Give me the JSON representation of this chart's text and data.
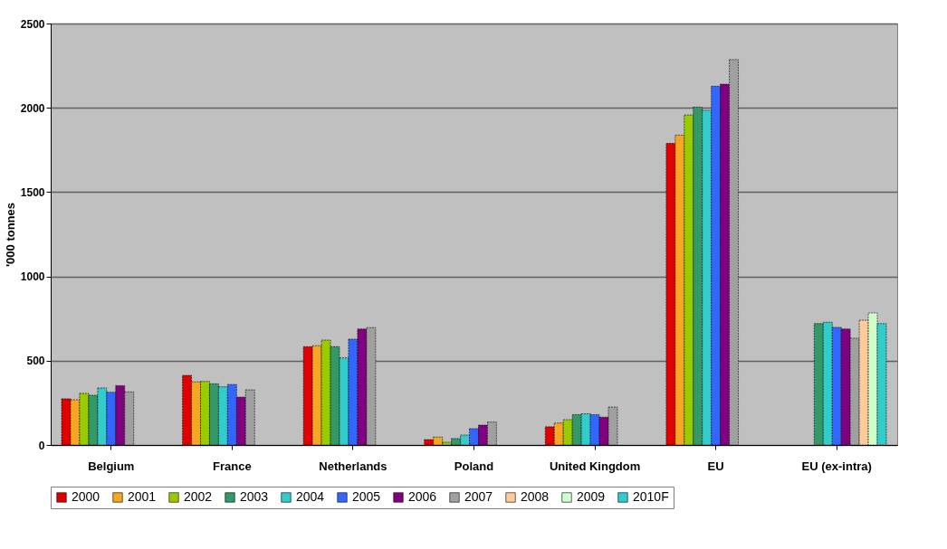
{
  "chart_data": {
    "type": "bar",
    "ylabel": "'000 tonnes",
    "categories": [
      "Belgium",
      "France",
      "Netherlands",
      "Poland",
      "United Kingdom",
      "EU",
      "EU (ex-intra)"
    ],
    "series": [
      {
        "name": "2000",
        "color": "#e00000",
        "values": [
          274,
          413,
          583,
          32,
          108,
          1789,
          null
        ]
      },
      {
        "name": "2001",
        "color": "#f5a623",
        "values": [
          268,
          374,
          589,
          47,
          130,
          1838,
          null
        ]
      },
      {
        "name": "2002",
        "color": "#99cc00",
        "values": [
          306,
          377,
          622,
          16,
          150,
          1957,
          null
        ]
      },
      {
        "name": "2003",
        "color": "#339966",
        "values": [
          295,
          363,
          583,
          38,
          180,
          2004,
          720
        ]
      },
      {
        "name": "2004",
        "color": "#33cccc",
        "values": [
          338,
          345,
          517,
          59,
          185,
          1985,
          728
        ]
      },
      {
        "name": "2005",
        "color": "#3366ff",
        "values": [
          313,
          359,
          628,
          97,
          180,
          2128,
          698
        ]
      },
      {
        "name": "2006",
        "color": "#800080",
        "values": [
          352,
          284,
          688,
          118,
          165,
          2140,
          688
        ]
      },
      {
        "name": "2007",
        "color": "#a0a0a0",
        "values": [
          315,
          327,
          696,
          136,
          225,
          2286,
          633
        ]
      },
      {
        "name": "2008",
        "color": "#ffcc99",
        "values": [
          null,
          null,
          null,
          null,
          null,
          null,
          740
        ]
      },
      {
        "name": "2009",
        "color": "#ccffcc",
        "values": [
          null,
          null,
          null,
          null,
          null,
          null,
          783
        ]
      },
      {
        "name": "2010F",
        "color": "#33cccc",
        "values": [
          null,
          null,
          null,
          null,
          null,
          null,
          720
        ]
      }
    ],
    "ylim": [
      0,
      2500
    ],
    "yticks": [
      0,
      500,
      1000,
      1500,
      2000,
      2500
    ],
    "grid": "y",
    "legend": "bottom"
  }
}
